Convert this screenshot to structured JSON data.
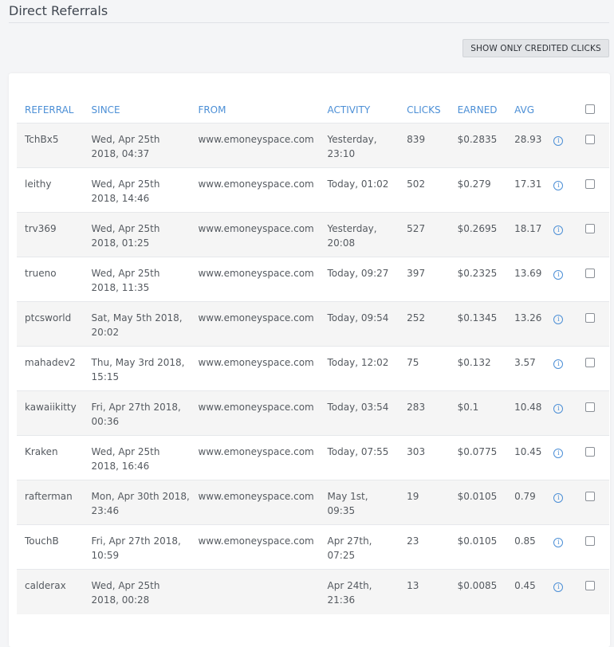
{
  "page": {
    "title": "Direct Referrals"
  },
  "toolbar": {
    "credited_button_label": "SHOW ONLY CREDITED CLICKS"
  },
  "table": {
    "headers": {
      "referral": "REFERRAL",
      "since": "SINCE",
      "from": "FROM",
      "activity": "ACTIVITY",
      "clicks": "CLICKS",
      "earned": "EARNED",
      "avg": "AVG"
    },
    "rows": [
      {
        "referral": "TchBx5",
        "since": [
          "Wed, Apr 25th",
          "2018, 04:37"
        ],
        "from": "www.emoneyspace.com",
        "activity": [
          "Yesterday,",
          "23:10"
        ],
        "clicks": "839",
        "earned": "$0.2835",
        "avg": "28.93"
      },
      {
        "referral": "leithy",
        "since": [
          "Wed, Apr 25th",
          "2018, 14:46"
        ],
        "from": "www.emoneyspace.com",
        "activity": [
          "Today, 01:02",
          ""
        ],
        "clicks": "502",
        "earned": "$0.279",
        "avg": "17.31"
      },
      {
        "referral": "trv369",
        "since": [
          "Wed, Apr 25th",
          "2018, 01:25"
        ],
        "from": "www.emoneyspace.com",
        "activity": [
          "Yesterday,",
          "20:08"
        ],
        "clicks": "527",
        "earned": "$0.2695",
        "avg": "18.17"
      },
      {
        "referral": "trueno",
        "since": [
          "Wed, Apr 25th",
          "2018, 11:35"
        ],
        "from": "www.emoneyspace.com",
        "activity": [
          "Today, 09:27",
          ""
        ],
        "clicks": "397",
        "earned": "$0.2325",
        "avg": "13.69"
      },
      {
        "referral": "ptcsworld",
        "since": [
          "Sat, May 5th 2018,",
          "20:02"
        ],
        "from": "www.emoneyspace.com",
        "activity": [
          "Today, 09:54",
          ""
        ],
        "clicks": "252",
        "earned": "$0.1345",
        "avg": "13.26"
      },
      {
        "referral": "mahadev2",
        "since": [
          "Thu, May 3rd 2018,",
          "15:15"
        ],
        "from": "www.emoneyspace.com",
        "activity": [
          "Today, 12:02",
          ""
        ],
        "clicks": "75",
        "earned": "$0.132",
        "avg": "3.57"
      },
      {
        "referral": "kawaiikitty",
        "since": [
          "Fri, Apr 27th 2018,",
          "00:36"
        ],
        "from": "www.emoneyspace.com",
        "activity": [
          "Today, 03:54",
          ""
        ],
        "clicks": "283",
        "earned": "$0.1",
        "avg": "10.48"
      },
      {
        "referral": "Kraken",
        "since": [
          "Wed, Apr 25th",
          "2018, 16:46"
        ],
        "from": "www.emoneyspace.com",
        "activity": [
          "Today, 07:55",
          ""
        ],
        "clicks": "303",
        "earned": "$0.0775",
        "avg": "10.45"
      },
      {
        "referral": "rafterman",
        "since": [
          "Mon, Apr 30th 2018,",
          "23:46"
        ],
        "from": "www.emoneyspace.com",
        "activity": [
          "May 1st,",
          "09:35"
        ],
        "clicks": "19",
        "earned": "$0.0105",
        "avg": "0.79"
      },
      {
        "referral": "TouchB",
        "since": [
          "Fri, Apr 27th 2018,",
          "10:59"
        ],
        "from": "www.emoneyspace.com",
        "activity": [
          "Apr 27th,",
          "07:25"
        ],
        "clicks": "23",
        "earned": "$0.0105",
        "avg": "0.85"
      },
      {
        "referral": "calderax",
        "since": [
          "Wed, Apr 25th",
          "2018, 00:28"
        ],
        "from": "",
        "activity": [
          "Apr 24th,",
          "21:36"
        ],
        "clicks": "13",
        "earned": "$0.0085",
        "avg": "0.45"
      }
    ]
  },
  "icons": {
    "info": "info-icon",
    "checkbox": "checkbox-icon"
  },
  "colors": {
    "accent": "#4c8fd6",
    "row_alt": "#f5f5f5"
  }
}
